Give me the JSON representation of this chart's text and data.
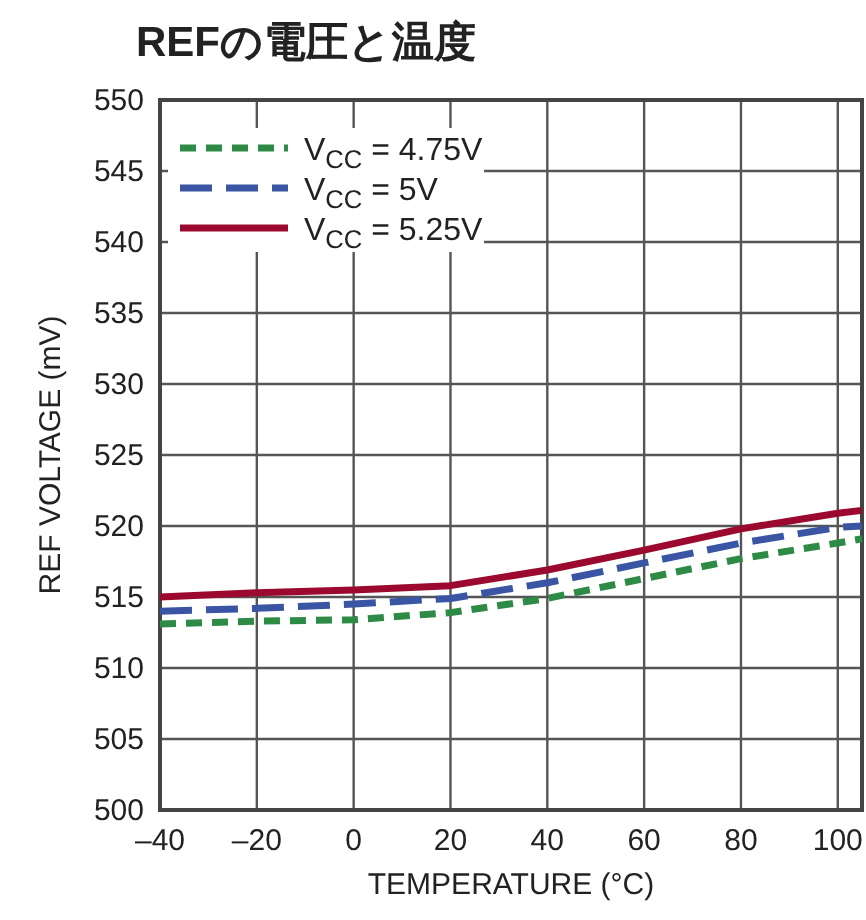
{
  "chart_data": {
    "type": "line",
    "title": "REFの電圧と温度",
    "xlabel": "TEMPERATURE (°C)",
    "ylabel": "REF VOLTAGE (mV)",
    "xlim": [
      -40,
      105
    ],
    "xticks": [
      {
        "value": -40,
        "label": "–40"
      },
      {
        "value": -20,
        "label": "–20"
      },
      0,
      20,
      40,
      60,
      80,
      100
    ],
    "ylim": [
      500,
      550
    ],
    "yticks": [
      500,
      505,
      510,
      515,
      520,
      525,
      530,
      535,
      540,
      545,
      550
    ],
    "grid": true,
    "legend": "top left",
    "marker": "none",
    "series": [
      {
        "name": "V$_{CC}$ = 4.75V",
        "color": "#2e8b45",
        "line_style": "dashed",
        "x": [
          -40,
          -20,
          0,
          20,
          40,
          60,
          80,
          100,
          105
        ],
        "values": [
          513.1,
          513.3,
          513.4,
          513.9,
          514.9,
          516.3,
          517.7,
          518.8,
          519.1
        ]
      },
      {
        "name": "V$_{CC}$ = 5V",
        "color": "#3a55a4",
        "line_style": "longdash",
        "x": [
          -40,
          -20,
          0,
          20,
          40,
          60,
          80,
          100,
          105
        ],
        "values": [
          514.0,
          514.2,
          514.5,
          514.9,
          516.0,
          517.4,
          518.8,
          519.9,
          520.0
        ]
      },
      {
        "name": "V$_{CC}$ = 5.25V",
        "color": "#9b0a2e",
        "line_style": "solid",
        "x": [
          -40,
          -20,
          0,
          20,
          40,
          60,
          80,
          100,
          105
        ],
        "values": [
          515.0,
          515.3,
          515.5,
          515.8,
          516.9,
          518.3,
          519.8,
          520.9,
          521.1
        ]
      }
    ]
  }
}
